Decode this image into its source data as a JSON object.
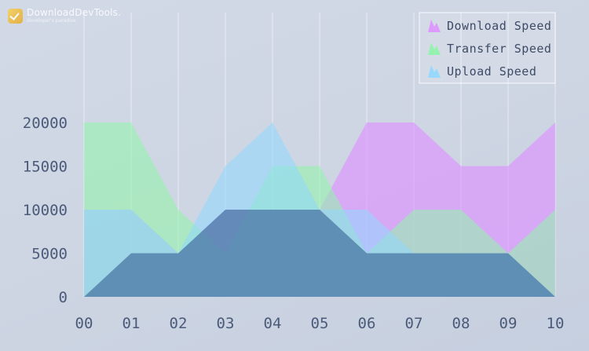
{
  "watermark": {
    "title": "DownloadDevTools.",
    "subtitle": "developer's paradise"
  },
  "chart_data": {
    "type": "area",
    "title": "",
    "xlabel": "",
    "ylabel": "",
    "categories": [
      "00",
      "01",
      "02",
      "03",
      "04",
      "05",
      "06",
      "07",
      "08",
      "09",
      "10"
    ],
    "ylim": [
      0,
      20000
    ],
    "yticks": [
      0,
      5000,
      10000,
      15000,
      20000
    ],
    "grid": "vertical",
    "legend_position": "top-right",
    "series": [
      {
        "name": "Download Speed",
        "color": "#dd92ff",
        "values": [
          10000,
          10000,
          5000,
          10000,
          10000,
          10000,
          20000,
          20000,
          15000,
          15000,
          20000
        ]
      },
      {
        "name": "Transfer Speed",
        "color": "#8ff5a8",
        "values": [
          20000,
          20000,
          10000,
          5000,
          15000,
          15000,
          5000,
          10000,
          10000,
          5000,
          10000
        ]
      },
      {
        "name": "Upload Speed",
        "color": "#8fd8ff",
        "values": [
          10000,
          10000,
          5000,
          15000,
          20000,
          10000,
          10000,
          5000,
          5000,
          5000,
          0
        ]
      },
      {
        "name": "",
        "color": "#4a77a3",
        "values": [
          0,
          5000,
          5000,
          10000,
          10000,
          10000,
          5000,
          5000,
          5000,
          5000,
          0
        ]
      }
    ]
  }
}
